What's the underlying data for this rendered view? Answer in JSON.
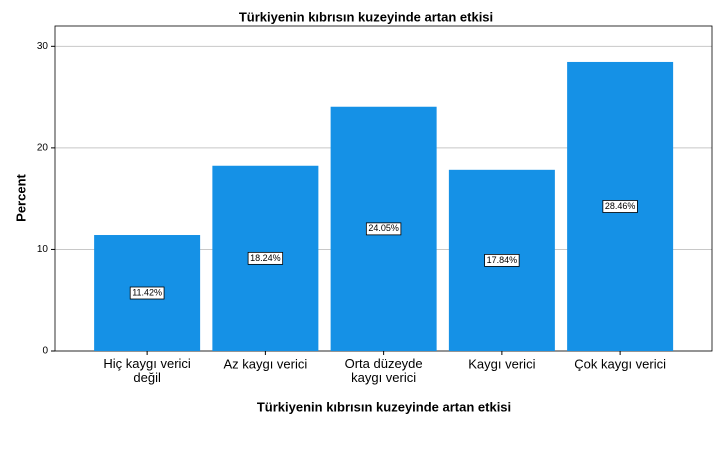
{
  "chart_data": {
    "type": "bar",
    "title": "Türkiyenin kıbrısın kuzeyinde artan etkisi",
    "x_label": "Türkiyenin kıbrısın kuzeyinde artan etkisi",
    "y_label": "Percent",
    "categories": [
      "Hiç kaygı verici değil",
      "Az kaygı verici",
      "Orta düzeyde kaygı verici",
      "Kaygı verici",
      "Çok kaygı verici"
    ],
    "values": [
      11.42,
      18.24,
      24.05,
      17.84,
      28.46
    ],
    "value_labels": [
      "11.42%",
      "18.24%",
      "24.05%",
      "17.84%",
      "28.46%"
    ],
    "color": "#1591e6",
    "ylim": [
      0,
      32
    ],
    "yticks": [
      0,
      10,
      20,
      30
    ],
    "grid": true
  }
}
